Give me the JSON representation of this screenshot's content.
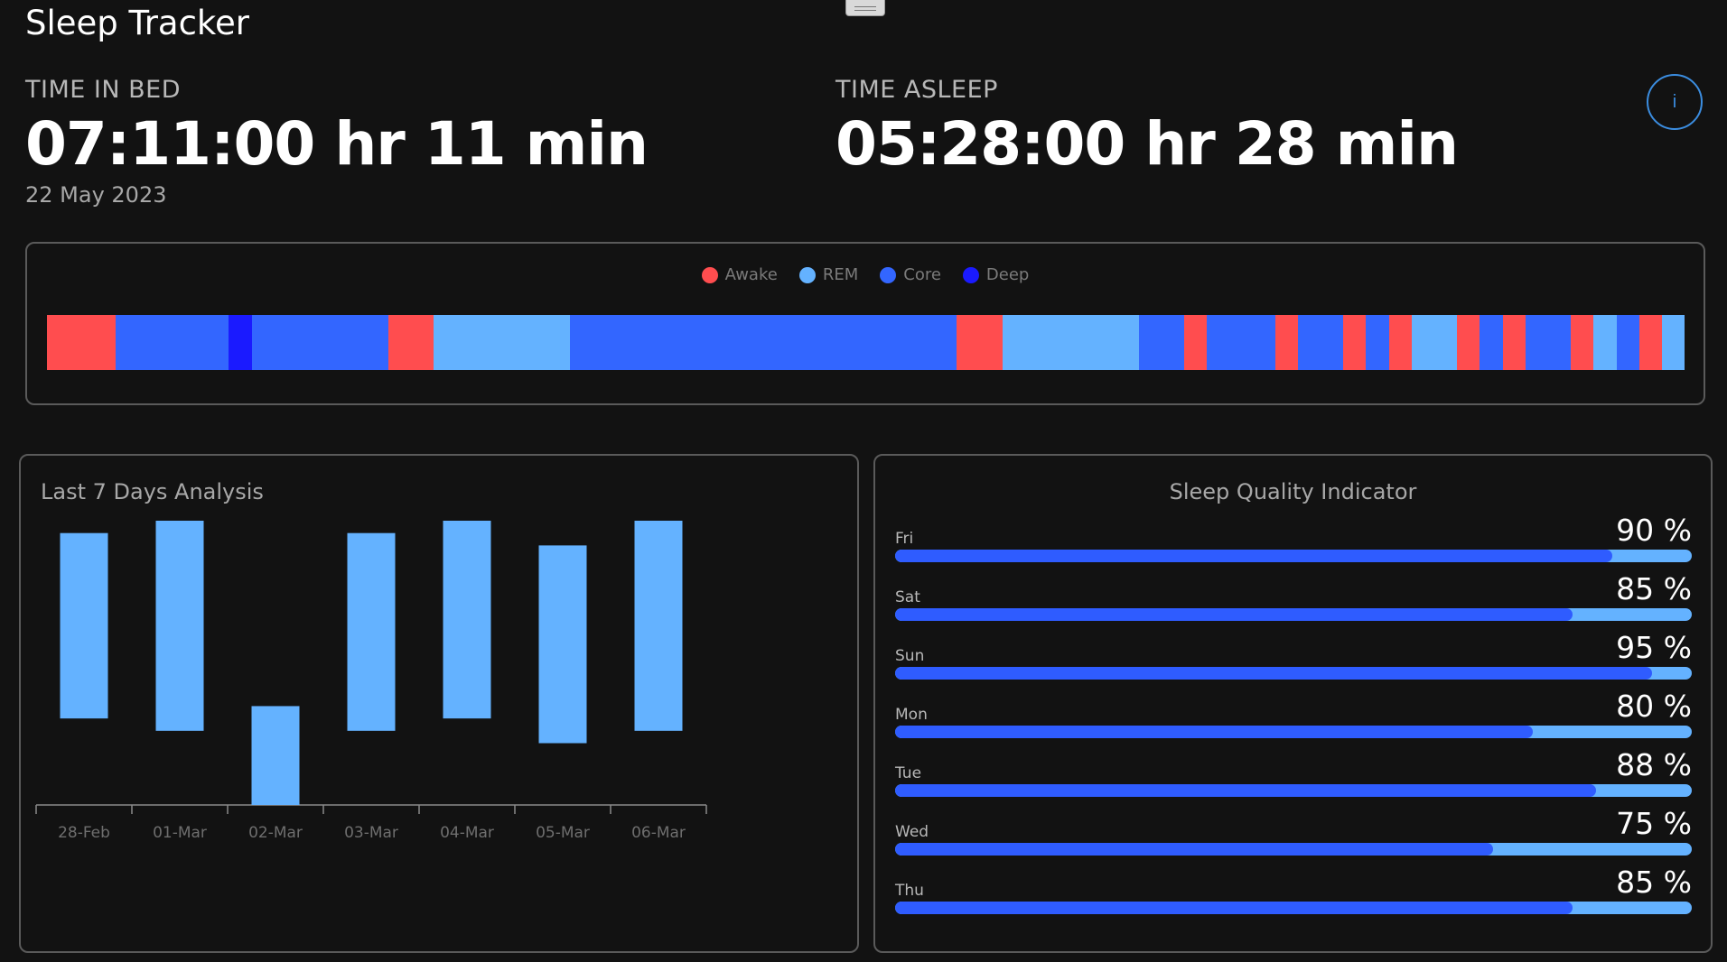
{
  "app": {
    "title": "Sleep Tracker"
  },
  "time_in_bed": {
    "label": "TIME IN BED",
    "clock": "07:11:00",
    "hr_part": "hr 11",
    "min_part": "min",
    "date": "22 May 2023"
  },
  "time_asleep": {
    "label": "TIME ASLEEP",
    "clock": "05:28:00",
    "hr_part": "hr 28",
    "min_part": "min"
  },
  "info_button": {
    "label": "i"
  },
  "stages": {
    "legend": [
      {
        "label": "Awake",
        "color": "#ff4d4f"
      },
      {
        "label": "REM",
        "color": "#64b2ff"
      },
      {
        "label": "Core",
        "color": "#3366ff"
      },
      {
        "label": "Deep",
        "color": "#1a1aff"
      }
    ],
    "segments": [
      {
        "stage": "Awake",
        "duration": 3
      },
      {
        "stage": "Core",
        "duration": 5
      },
      {
        "stage": "Deep",
        "duration": 1
      },
      {
        "stage": "Core",
        "duration": 6
      },
      {
        "stage": "Awake",
        "duration": 2
      },
      {
        "stage": "REM",
        "duration": 6
      },
      {
        "stage": "Core",
        "duration": 17
      },
      {
        "stage": "Awake",
        "duration": 2
      },
      {
        "stage": "REM",
        "duration": 6
      },
      {
        "stage": "Core",
        "duration": 2
      },
      {
        "stage": "Awake",
        "duration": 1
      },
      {
        "stage": "Core",
        "duration": 3
      },
      {
        "stage": "Awake",
        "duration": 1
      },
      {
        "stage": "Core",
        "duration": 2
      },
      {
        "stage": "Awake",
        "duration": 1
      },
      {
        "stage": "Core",
        "duration": 1
      },
      {
        "stage": "Awake",
        "duration": 1
      },
      {
        "stage": "REM",
        "duration": 2
      },
      {
        "stage": "Awake",
        "duration": 1
      },
      {
        "stage": "Core",
        "duration": 1
      },
      {
        "stage": "Awake",
        "duration": 1
      },
      {
        "stage": "Core",
        "duration": 2
      },
      {
        "stage": "Awake",
        "duration": 1
      },
      {
        "stage": "REM",
        "duration": 1
      },
      {
        "stage": "Core",
        "duration": 1
      },
      {
        "stage": "Awake",
        "duration": 1
      },
      {
        "stage": "REM",
        "duration": 1
      }
    ]
  },
  "last7": {
    "title": "Last 7 Days Analysis",
    "chart_data": {
      "type": "bar",
      "title": "Last 7 Days Analysis",
      "categories": [
        "28-Feb",
        "01-Mar",
        "02-Mar",
        "03-Mar",
        "04-Mar",
        "05-Mar",
        "06-Mar"
      ],
      "series": [
        {
          "low": [
            3.5,
            3.0,
            0.0,
            3.0,
            3.5,
            2.5,
            3.0
          ],
          "high": [
            11.0,
            11.5,
            4.0,
            11.0,
            11.5,
            10.5,
            11.5
          ]
        }
      ],
      "ylim": [
        0,
        11.5
      ],
      "grid": false
    }
  },
  "quality": {
    "title": "Sleep Quality Indicator",
    "days": [
      {
        "day": "Fri",
        "percent": 90,
        "label": "90 %"
      },
      {
        "day": "Sat",
        "percent": 85,
        "label": "85 %"
      },
      {
        "day": "Sun",
        "percent": 95,
        "label": "95 %"
      },
      {
        "day": "Mon",
        "percent": 80,
        "label": "80 %"
      },
      {
        "day": "Tue",
        "percent": 88,
        "label": "88 %"
      },
      {
        "day": "Wed",
        "percent": 75,
        "label": "75 %"
      },
      {
        "day": "Thu",
        "percent": 85,
        "label": "85 %"
      }
    ]
  }
}
